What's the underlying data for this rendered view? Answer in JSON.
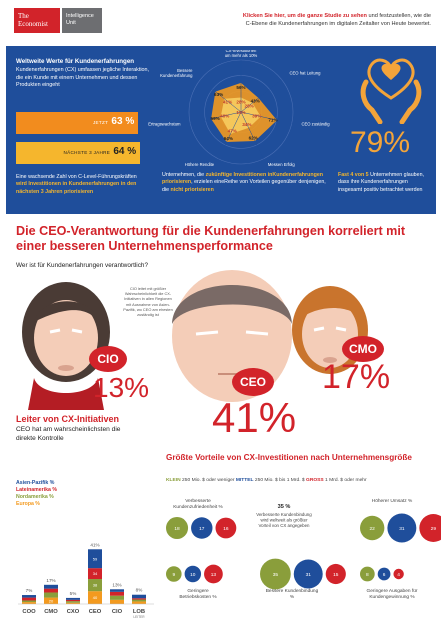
{
  "header": {
    "logo_line1": "The",
    "logo_line2": "Economist",
    "logo_sub1": "Intelligence",
    "logo_sub2": "Unit",
    "cta_link": "Klicken Sie hier, um die ganze Studie zu sehen",
    "cta_rest1": " und festzustellen, wie die",
    "cta_line2": "C-Ebene die Kundenerfahrungen im digitalen Zeitalter von Heute bewertet."
  },
  "band": {
    "title": "Weltweite Werte für Kundenerfahrungen",
    "desc": "Kundenerfahrungen (CX) umfassen jegliche Interaktion, die ein Kunde mit einem Unternehmen und dessen Produkten eingeht",
    "bar1_label": "JETZT",
    "bar1_value": "63 %",
    "bar1_fraction": 0.63,
    "bar2_label": "NÄCHSTE 3 JAHRE",
    "bar2_value": "64 %",
    "bar2_fraction": 0.64,
    "foot_pre": "Eine wachsende Zahl von C-Level-Führungskräften ",
    "foot_bold": "wird Investitionen in Kundenerfahrungen in den nächsten 3 Jahren priorisieren",
    "mid_pre": "Unternehmen, die ",
    "mid_bold1": "zukünftige Investitionen inKundenerfahrungen priorisieren",
    "mid_mid": ", erzielen eineReihe von Vorteilen gegenüber denjenigen, die ",
    "mid_bold2": "nicht priorisieren",
    "right_bold": "Fast 4 von 5",
    "right_rest": " Unternehmen glauben, dass ihre Kundenerfahrungen insgesamt positiv betrachtet werden",
    "big_pct": "79%"
  },
  "radar": {
    "labels": [
      "Steigerung der CX-Investitionen um mehr als 10%",
      "CEO hat Leitung",
      "CEO zuständig",
      "Messen Erfolg",
      "Höhere Rendite",
      "Ertragswachstum",
      "Bessere Kundenerfahrung"
    ],
    "outer": [
      "56%",
      "43%",
      "71%",
      "62%",
      "64%",
      "59%",
      "63%"
    ],
    "inner": [
      "28%",
      "28%",
      "39%",
      "34%",
      "47%",
      "40%",
      "41%"
    ],
    "center": "15%"
  },
  "section": {
    "title": "Die CEO-Verantwortung für die Kundenerfahrungen korreliert mit einer besseren Unternehmensperformance",
    "subtitle": "Wer ist für Kundenerfahrungen verantwortlich?"
  },
  "roles": {
    "cio_label": "CIO",
    "cio_pct": "13%",
    "ceo_label": "CEO",
    "ceo_pct": "41%",
    "cmo_label": "CMO",
    "cmo_pct": "17%",
    "cio_note": "CIO leitet mit größter Wahrscheinlichkeit die CX-Initiativen in allen Regionen mit Ausnahme von Asien-Pazifik, wo CEO am ehesten zuständig ist"
  },
  "leftchart": {
    "title": "Leiter von CX-Initiativen",
    "subtitle": "CEO hat am wahrscheinlichsten die direkte Kontrolle",
    "legend": [
      {
        "name": "Asien-Pazifik %",
        "color": "#1f4e9b"
      },
      {
        "name": "Lateinamerika %",
        "color": "#d2232a"
      },
      {
        "name": "Nordamerika %",
        "color": "#8a9e3b"
      },
      {
        "name": "Europa %",
        "color": "#f39a1f"
      }
    ]
  },
  "chart_data": {
    "type": "bar",
    "categories": [
      "COO",
      "CMO",
      "CXO",
      "CEO",
      "CIO",
      "LOB"
    ],
    "totals": [
      "7%",
      "17%",
      "5%",
      "41%",
      "13%",
      "8%"
    ],
    "series": [
      {
        "name": "Asien-Pazifik %",
        "values": [
          8,
          12,
          6,
          59,
          8,
          11
        ]
      },
      {
        "name": "Lateinamerika %",
        "values": [
          9,
          12,
          4,
          34,
          12,
          4
        ]
      },
      {
        "name": "Nordamerika %",
        "values": [
          5,
          16,
          5,
          38,
          13,
          6
        ]
      },
      {
        "name": "Europa %",
        "values": [
          6,
          20,
          4,
          40,
          13,
          8
        ]
      }
    ],
    "extra_label": "LEITER"
  },
  "rightchart": {
    "title": "Größte Vorteile von CX-Investitionen nach Unternehmensgröße",
    "k1": "KLEIN",
    "k1_rest": " 250 Mio. $ oder weniger  ",
    "k2": "MITTEL",
    "k2_rest": " 250 Mio. $ bis 1 Mrd. $  ",
    "k3": "GROSS",
    "k3_rest": " 1 Mrd. $ oder mehr",
    "groups": [
      {
        "label": "Verbesserte Kundenzufriedenheit %",
        "values": [
          "18",
          "17",
          "16"
        ]
      },
      {
        "label": "Höherer Umsatz %",
        "values": [
          "22",
          "31",
          "29"
        ]
      },
      {
        "label": "Geringere Betriebskosten %",
        "values": [
          "9",
          "10",
          "13"
        ]
      },
      {
        "label": "Bessere Kundenbindung %",
        "values": [
          "35",
          "31",
          "15"
        ]
      },
      {
        "label": "Geringere Ausgaben für Kundengewinnung %",
        "values": [
          "8",
          "6",
          "4"
        ]
      }
    ],
    "note_pct": "35 %",
    "note_text": "Verbesserte Kundenbindung wird weltweit als größter Vorteil von CX angegeben"
  }
}
